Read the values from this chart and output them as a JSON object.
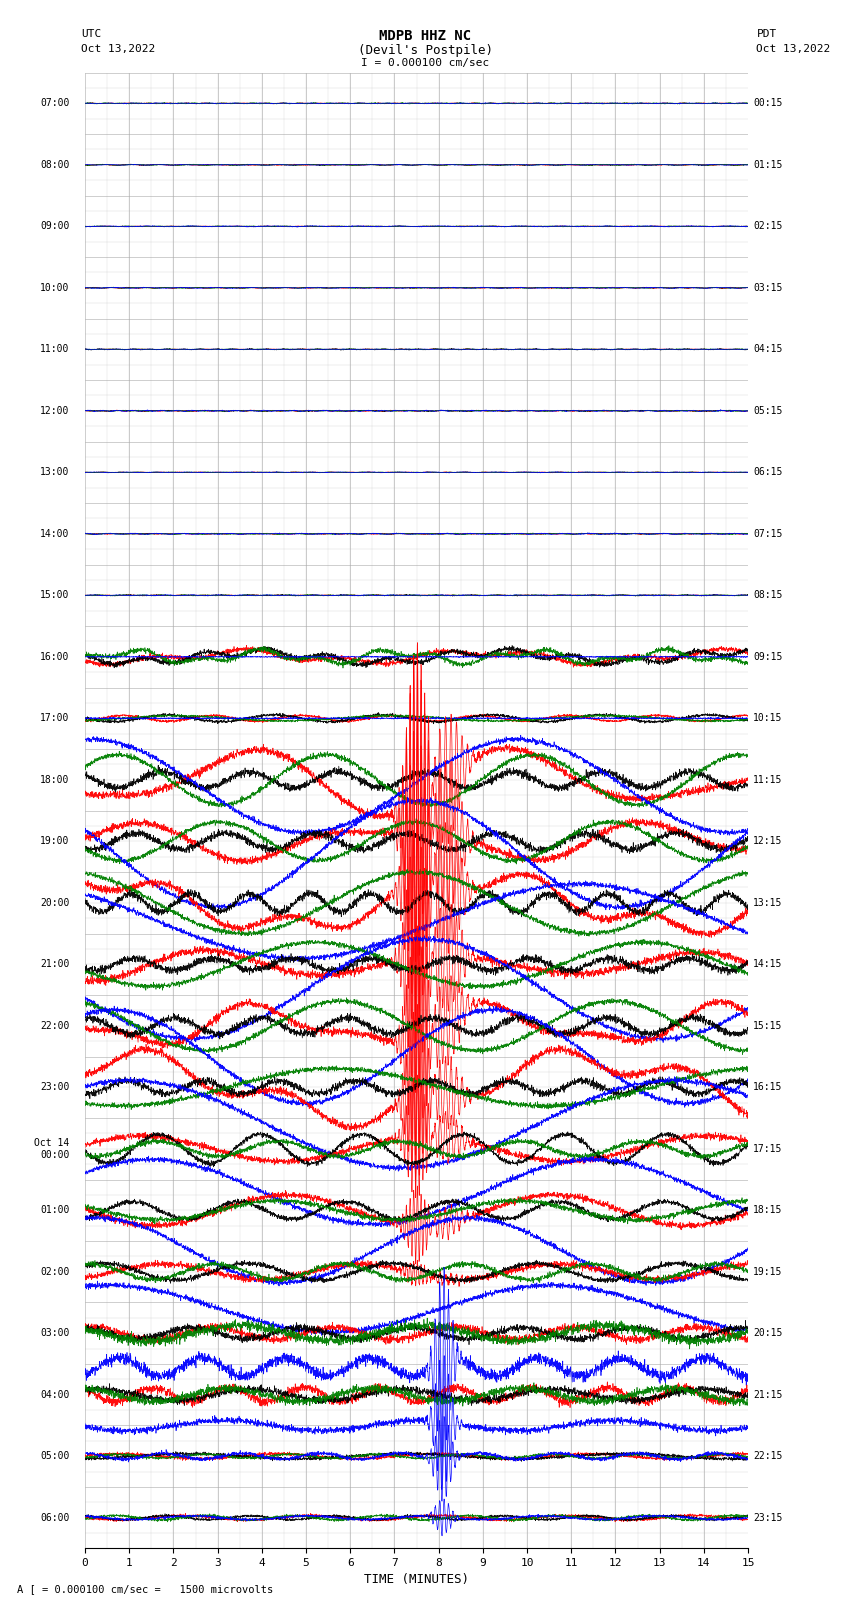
{
  "title_line1": "MDPB HHZ NC",
  "title_line2": "(Devil's Postpile)",
  "title_line3": "I = 0.000100 cm/sec",
  "left_label_top": "UTC",
  "left_label_date": "Oct 13,2022",
  "right_label_top": "PDT",
  "right_label_date": "Oct 13,2022",
  "xlabel": "TIME (MINUTES)",
  "bottom_note": "A [ = 0.000100 cm/sec =   1500 microvolts",
  "utc_labels": [
    "07:00",
    "08:00",
    "09:00",
    "10:00",
    "11:00",
    "12:00",
    "13:00",
    "14:00",
    "15:00",
    "16:00",
    "17:00",
    "18:00",
    "19:00",
    "20:00",
    "21:00",
    "22:00",
    "23:00",
    "Oct 14\n00:00",
    "01:00",
    "02:00",
    "03:00",
    "04:00",
    "05:00",
    "06:00"
  ],
  "pdt_labels": [
    "00:15",
    "01:15",
    "02:15",
    "03:15",
    "04:15",
    "05:15",
    "06:15",
    "07:15",
    "08:15",
    "09:15",
    "10:15",
    "11:15",
    "12:15",
    "13:15",
    "14:15",
    "15:15",
    "16:15",
    "17:15",
    "18:15",
    "19:15",
    "20:15",
    "21:15",
    "22:15",
    "23:15"
  ],
  "n_rows": 24,
  "x_min": 0,
  "x_max": 15,
  "bg_color": "#ffffff",
  "grid_color": "#aaaaaa",
  "trace_colors": [
    "red",
    "black",
    "green",
    "blue"
  ]
}
